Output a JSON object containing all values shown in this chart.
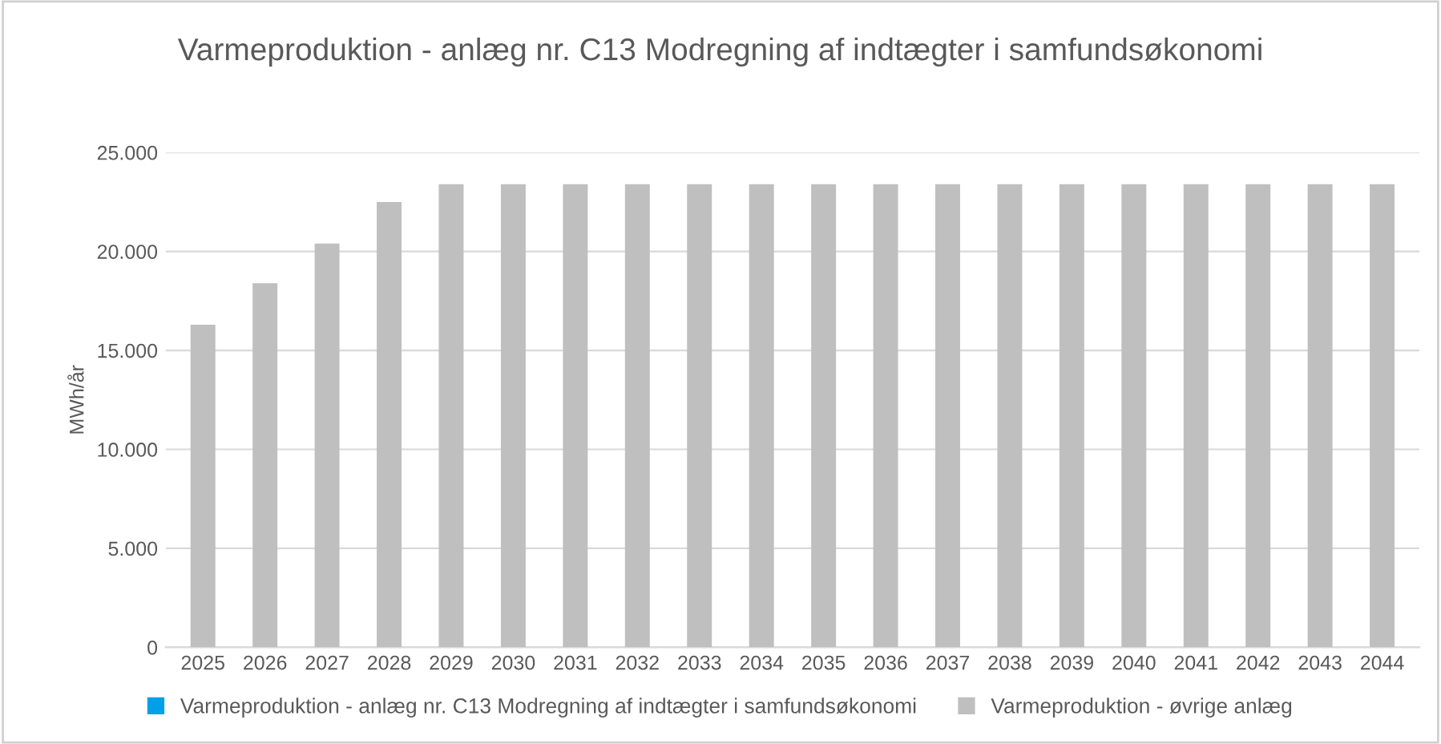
{
  "chart_data": {
    "type": "bar",
    "title": "Varmeproduktion - anlæg nr. C13 Modregning af indtægter i samfundsøkonomi",
    "ylabel": "MWh/år",
    "categories": [
      "2025",
      "2026",
      "2027",
      "2028",
      "2029",
      "2030",
      "2031",
      "2032",
      "2033",
      "2034",
      "2035",
      "2036",
      "2037",
      "2038",
      "2039",
      "2040",
      "2041",
      "2042",
      "2043",
      "2044"
    ],
    "stacked": true,
    "series": [
      {
        "name": "Varmeproduktion - anlæg nr. C13 Modregning af indtægter i samfundsøkonomi",
        "color": "#00a0e9",
        "values": [
          0,
          0,
          0,
          0,
          0,
          0,
          0,
          0,
          0,
          0,
          0,
          0,
          0,
          0,
          0,
          0,
          0,
          0,
          0,
          0
        ]
      },
      {
        "name": "Varmeproduktion - øvrige anlæg",
        "color": "#bfbfbf",
        "values": [
          16300,
          18400,
          20400,
          22500,
          23400,
          23400,
          23400,
          23400,
          23400,
          23400,
          23400,
          23400,
          23400,
          23400,
          23400,
          23400,
          23400,
          23400,
          23400,
          23400
        ]
      }
    ],
    "ylim": [
      0,
      25000
    ],
    "yticks": [
      {
        "value": 0,
        "label": "0"
      },
      {
        "value": 5000,
        "label": "5.000"
      },
      {
        "value": 10000,
        "label": "10.000"
      },
      {
        "value": 15000,
        "label": "15.000"
      },
      {
        "value": 20000,
        "label": "20.000"
      },
      {
        "value": 25000,
        "label": "25.000"
      }
    ],
    "grid": "y",
    "legend": "bottom"
  }
}
